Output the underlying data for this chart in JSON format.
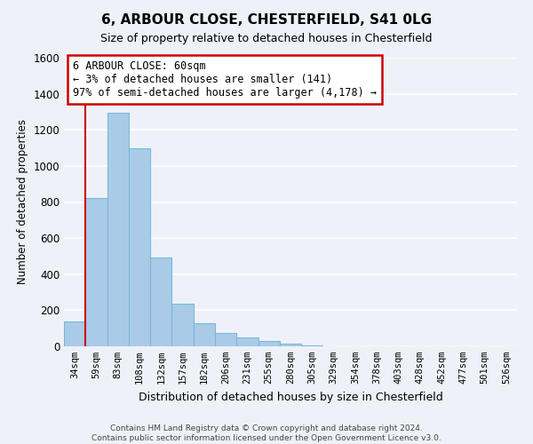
{
  "title": "6, ARBOUR CLOSE, CHESTERFIELD, S41 0LG",
  "subtitle": "Size of property relative to detached houses in Chesterfield",
  "xlabel": "Distribution of detached houses by size in Chesterfield",
  "ylabel": "Number of detached properties",
  "bar_labels": [
    "34sqm",
    "59sqm",
    "83sqm",
    "108sqm",
    "132sqm",
    "157sqm",
    "182sqm",
    "206sqm",
    "231sqm",
    "255sqm",
    "280sqm",
    "305sqm",
    "329sqm",
    "354sqm",
    "378sqm",
    "403sqm",
    "428sqm",
    "452sqm",
    "477sqm",
    "501sqm",
    "526sqm"
  ],
  "bar_values": [
    140,
    820,
    1295,
    1100,
    490,
    235,
    130,
    75,
    50,
    28,
    15,
    5,
    0,
    0,
    0,
    0,
    0,
    0,
    0,
    0,
    0
  ],
  "bar_color": "#aacbe8",
  "bar_edge_color": "#7ab8d8",
  "ylim": [
    0,
    1600
  ],
  "yticks": [
    0,
    200,
    400,
    600,
    800,
    1000,
    1200,
    1400,
    1600
  ],
  "property_line_color": "#cc0000",
  "annotation_title": "6 ARBOUR CLOSE: 60sqm",
  "annotation_line1": "← 3% of detached houses are smaller (141)",
  "annotation_line2": "97% of semi-detached houses are larger (4,178) →",
  "annotation_box_color": "#ffffff",
  "annotation_box_edge": "#cc0000",
  "footer1": "Contains HM Land Registry data © Crown copyright and database right 2024.",
  "footer2": "Contains public sector information licensed under the Open Government Licence v3.0.",
  "background_color": "#eef2f8",
  "grid_color": "#ffffff"
}
